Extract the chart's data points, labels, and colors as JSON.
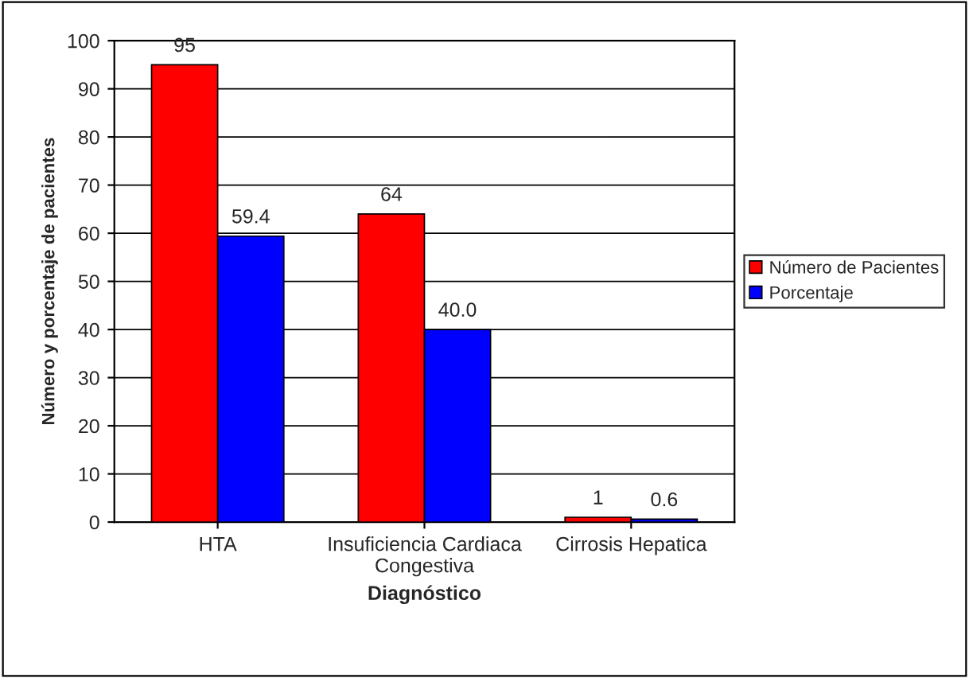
{
  "chart_data": {
    "type": "bar",
    "xlabel": "Diagnóstico",
    "ylabel": "Número y porcentaje de pacientes",
    "categories": [
      "HTA",
      "Insuficiencia Cardiaca\nCongestiva",
      "Cirrosis Hepatica"
    ],
    "series": [
      {
        "name": "Número de Pacientes",
        "color": "#ff0000",
        "values": [
          95,
          64,
          1
        ],
        "value_labels": [
          "95",
          "64",
          "1"
        ]
      },
      {
        "name": "Porcentaje",
        "color": "#0000ff",
        "values": [
          59.4,
          40.0,
          0.6
        ],
        "value_labels": [
          "59.4",
          "40.0",
          "0.6"
        ]
      }
    ],
    "ylim": [
      0,
      100
    ],
    "yticks": [
      0,
      10,
      20,
      30,
      40,
      50,
      60,
      70,
      80,
      90,
      100
    ],
    "grid": "y",
    "legend": "right"
  }
}
